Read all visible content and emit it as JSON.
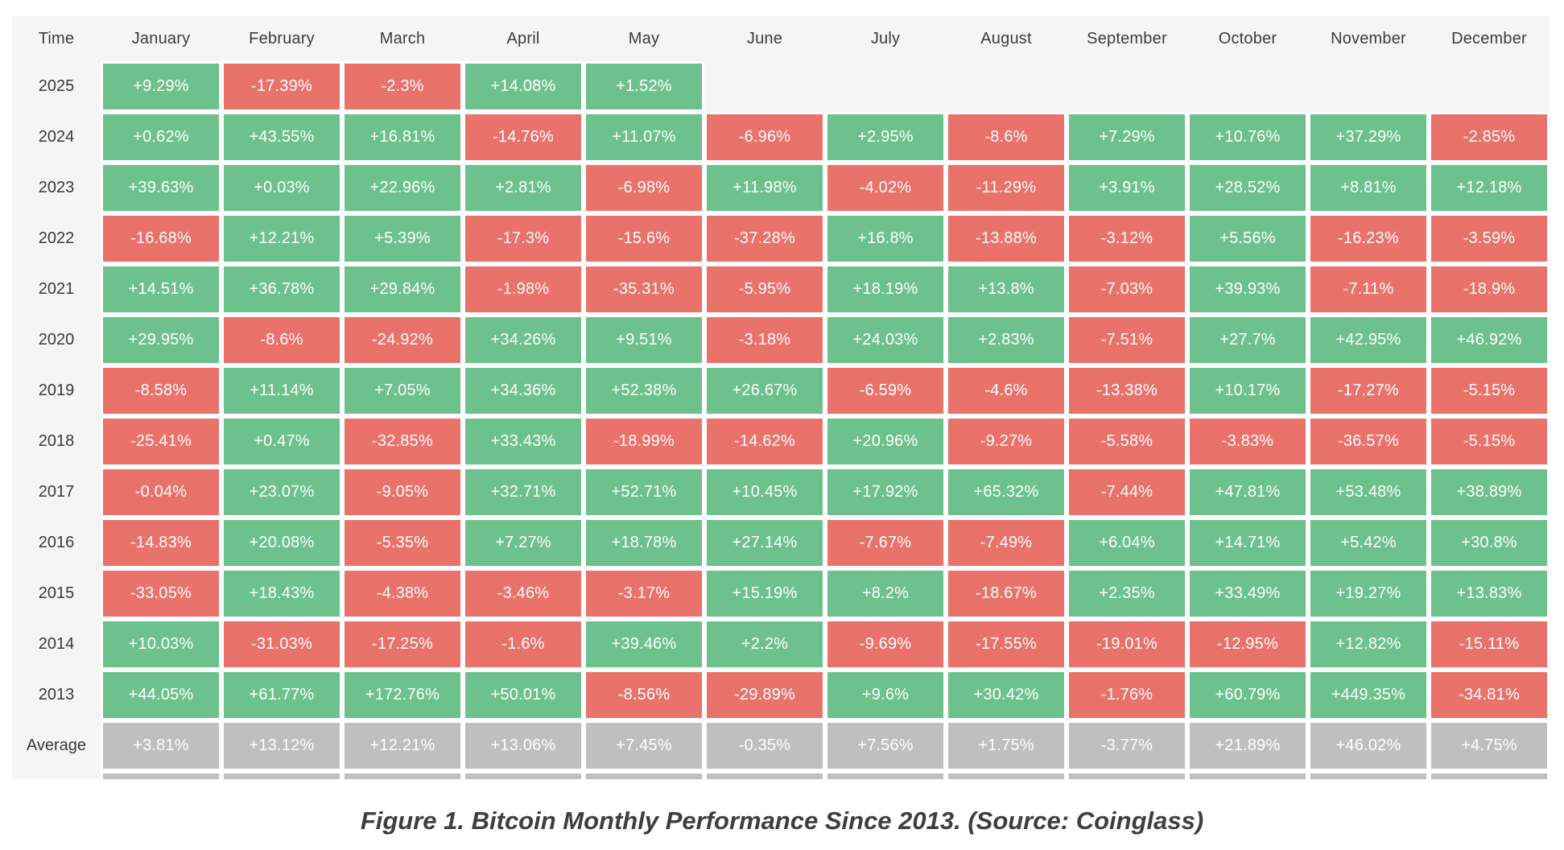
{
  "caption": "Figure 1. Bitcoin Monthly Performance Since 2013. (Source: Coinglass)",
  "chart_data": {
    "type": "heatmap",
    "title": "Figure 1. Bitcoin Monthly Performance Since 2013. (Source: Coinglass)",
    "corner_label": "Time",
    "columns": [
      "January",
      "February",
      "March",
      "April",
      "May",
      "June",
      "July",
      "August",
      "September",
      "October",
      "November",
      "December"
    ],
    "rows": [
      {
        "label": "2025",
        "values": [
          "+9.29%",
          "-17.39%",
          "-2.3%",
          "+14.08%",
          "+1.52%",
          null,
          null,
          null,
          null,
          null,
          null,
          null
        ]
      },
      {
        "label": "2024",
        "values": [
          "+0.62%",
          "+43.55%",
          "+16.81%",
          "-14.76%",
          "+11.07%",
          "-6.96%",
          "+2.95%",
          "-8.6%",
          "+7.29%",
          "+10.76%",
          "+37.29%",
          "-2.85%"
        ]
      },
      {
        "label": "2023",
        "values": [
          "+39.63%",
          "+0.03%",
          "+22.96%",
          "+2.81%",
          "-6.98%",
          "+11.98%",
          "-4.02%",
          "-11.29%",
          "+3.91%",
          "+28.52%",
          "+8.81%",
          "+12.18%"
        ]
      },
      {
        "label": "2022",
        "values": [
          "-16.68%",
          "+12.21%",
          "+5.39%",
          "-17.3%",
          "-15.6%",
          "-37.28%",
          "+16.8%",
          "-13.88%",
          "-3.12%",
          "+5.56%",
          "-16.23%",
          "-3.59%"
        ]
      },
      {
        "label": "2021",
        "values": [
          "+14.51%",
          "+36.78%",
          "+29.84%",
          "-1.98%",
          "-35.31%",
          "-5.95%",
          "+18.19%",
          "+13.8%",
          "-7.03%",
          "+39.93%",
          "-7.11%",
          "-18.9%"
        ]
      },
      {
        "label": "2020",
        "values": [
          "+29.95%",
          "-8.6%",
          "-24.92%",
          "+34.26%",
          "+9.51%",
          "-3.18%",
          "+24.03%",
          "+2.83%",
          "-7.51%",
          "+27.7%",
          "+42.95%",
          "+46.92%"
        ]
      },
      {
        "label": "2019",
        "values": [
          "-8.58%",
          "+11.14%",
          "+7.05%",
          "+34.36%",
          "+52.38%",
          "+26.67%",
          "-6.59%",
          "-4.6%",
          "-13.38%",
          "+10.17%",
          "-17.27%",
          "-5.15%"
        ]
      },
      {
        "label": "2018",
        "values": [
          "-25.41%",
          "+0.47%",
          "-32.85%",
          "+33.43%",
          "-18.99%",
          "-14.62%",
          "+20.96%",
          "-9.27%",
          "-5.58%",
          "-3.83%",
          "-36.57%",
          "-5.15%"
        ]
      },
      {
        "label": "2017",
        "values": [
          "-0.04%",
          "+23.07%",
          "-9.05%",
          "+32.71%",
          "+52.71%",
          "+10.45%",
          "+17.92%",
          "+65.32%",
          "-7.44%",
          "+47.81%",
          "+53.48%",
          "+38.89%"
        ]
      },
      {
        "label": "2016",
        "values": [
          "-14.83%",
          "+20.08%",
          "-5.35%",
          "+7.27%",
          "+18.78%",
          "+27.14%",
          "-7.67%",
          "-7.49%",
          "+6.04%",
          "+14.71%",
          "+5.42%",
          "+30.8%"
        ]
      },
      {
        "label": "2015",
        "values": [
          "-33.05%",
          "+18.43%",
          "-4.38%",
          "-3.46%",
          "-3.17%",
          "+15.19%",
          "+8.2%",
          "-18.67%",
          "+2.35%",
          "+33.49%",
          "+19.27%",
          "+13.83%"
        ]
      },
      {
        "label": "2014",
        "values": [
          "+10.03%",
          "-31.03%",
          "-17.25%",
          "-1.6%",
          "+39.46%",
          "+2.2%",
          "-9.69%",
          "-17.55%",
          "-19.01%",
          "-12.95%",
          "+12.82%",
          "-15.11%"
        ]
      },
      {
        "label": "2013",
        "values": [
          "+44.05%",
          "+61.77%",
          "+172.76%",
          "+50.01%",
          "-8.56%",
          "-29.89%",
          "+9.6%",
          "+30.42%",
          "-1.76%",
          "+60.79%",
          "+449.35%",
          "-34.81%"
        ]
      },
      {
        "label": "Average",
        "values": [
          "+3.81%",
          "+13.12%",
          "+12.21%",
          "+13.06%",
          "+7.45%",
          "-0.35%",
          "+7.56%",
          "+1.75%",
          "-3.77%",
          "+21.89%",
          "+46.02%",
          "+4.75%"
        ]
      }
    ],
    "layout": {
      "legend": "none",
      "grid": "off"
    },
    "colors": {
      "positive": "#6dc18c",
      "negative": "#e9726b",
      "average": "#bfbfbf",
      "table_background": "#f5f5f6",
      "page_background": "#ffffff",
      "cell_text": "#ffffff",
      "label_text": "#3c3c3e"
    }
  }
}
